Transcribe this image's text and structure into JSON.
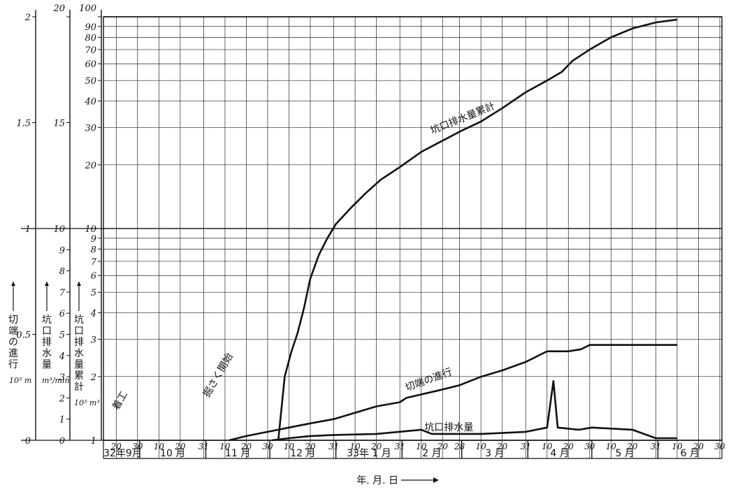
{
  "chart_data": {
    "type": "line",
    "xlabel": "年. 月. 日",
    "axes": {
      "advance": {
        "label": "切端の進行",
        "unit": "10³ m",
        "range": [
          0,
          2
        ],
        "ticks": [
          "0",
          "0.5",
          "1",
          "1.5",
          "2"
        ]
      },
      "discharge": {
        "label": "坑口排水量",
        "unit": "m³/min",
        "range": [
          0,
          20
        ],
        "ticks": [
          "0",
          "1",
          "2",
          "3",
          "4",
          "5",
          "6",
          "7",
          "8",
          "9",
          "10",
          "15",
          "20"
        ]
      },
      "cumulative": {
        "label": "坑口排水量累計",
        "unit": "10³ m³",
        "scale": "log",
        "range": [
          1,
          100
        ],
        "ticks": [
          "1",
          "2",
          "3",
          "4",
          "5",
          "6",
          "7",
          "8",
          "9",
          "10",
          "20",
          "30",
          "40",
          "50",
          "60",
          "70",
          "80",
          "90",
          "100"
        ]
      }
    },
    "x_axis": {
      "months": [
        {
          "label": "32年9月",
          "start": "1957-09-15",
          "end": "1957-09-30"
        },
        {
          "label": "10 月",
          "start": "1957-10-01",
          "end": "1957-10-31"
        },
        {
          "label": "11 月",
          "start": "1957-11-01",
          "end": "1957-11-30"
        },
        {
          "label": "12 月",
          "start": "1957-12-01",
          "end": "1957-12-31"
        },
        {
          "label": "33年 1 月",
          "start": "1958-01-01",
          "end": "1958-01-31"
        },
        {
          "label": "2 月",
          "start": "1958-02-01",
          "end": "1958-02-28"
        },
        {
          "label": "3 月",
          "start": "1958-03-01",
          "end": "1958-03-31"
        },
        {
          "label": "4 月",
          "start": "1958-04-01",
          "end": "1958-04-30"
        },
        {
          "label": "5 月",
          "start": "1958-05-01",
          "end": "1958-05-31"
        },
        {
          "label": "6 月",
          "start": "1958-06-01",
          "end": "1958-06-30"
        }
      ],
      "day_ticks": [
        {
          "date": "1957-09-20",
          "label": "20"
        },
        {
          "date": "1957-09-30",
          "label": "30"
        },
        {
          "date": "1957-10-10",
          "label": "10"
        },
        {
          "date": "1957-10-20",
          "label": "20"
        },
        {
          "date": "1957-10-31",
          "label": "31"
        },
        {
          "date": "1957-11-10",
          "label": "10"
        },
        {
          "date": "1957-11-20",
          "label": "20"
        },
        {
          "date": "1957-11-30",
          "label": "30"
        },
        {
          "date": "1957-12-10",
          "label": "10"
        },
        {
          "date": "1957-12-20",
          "label": "20"
        },
        {
          "date": "1957-12-31",
          "label": "31"
        },
        {
          "date": "1958-01-10",
          "label": "10"
        },
        {
          "date": "1958-01-20",
          "label": "20"
        },
        {
          "date": "1958-01-31",
          "label": "31"
        },
        {
          "date": "1958-02-10",
          "label": "10"
        },
        {
          "date": "1958-02-20",
          "label": "20"
        },
        {
          "date": "1958-02-28",
          "label": "28"
        },
        {
          "date": "1958-03-10",
          "label": "10"
        },
        {
          "date": "1958-03-20",
          "label": "20"
        },
        {
          "date": "1958-03-31",
          "label": "31"
        },
        {
          "date": "1958-04-10",
          "label": "10"
        },
        {
          "date": "1958-04-20",
          "label": "20"
        },
        {
          "date": "1958-04-30",
          "label": "30"
        },
        {
          "date": "1958-05-10",
          "label": "10"
        },
        {
          "date": "1958-05-20",
          "label": "20"
        },
        {
          "date": "1958-05-31",
          "label": "31"
        },
        {
          "date": "1958-06-10",
          "label": "10"
        },
        {
          "date": "1958-06-20",
          "label": "20"
        },
        {
          "date": "1958-06-30",
          "label": "30"
        }
      ]
    },
    "series": [
      {
        "name": "坑口排水量累計",
        "axis": "cumulative",
        "points": [
          [
            "1957-12-05",
            1.0
          ],
          [
            "1957-12-08",
            2.0
          ],
          [
            "1957-12-11",
            2.6
          ],
          [
            "1957-12-14",
            3.2
          ],
          [
            "1957-12-17",
            4.2
          ],
          [
            "1957-12-20",
            5.8
          ],
          [
            "1957-12-24",
            7.5
          ],
          [
            "1957-12-28",
            9.0
          ],
          [
            "1958-01-01",
            10.5
          ],
          [
            "1958-01-08",
            12.5
          ],
          [
            "1958-01-15",
            14.7
          ],
          [
            "1958-01-22",
            17.0
          ],
          [
            "1958-01-31",
            19.5
          ],
          [
            "1958-02-10",
            23.0
          ],
          [
            "1958-02-20",
            26.0
          ],
          [
            "1958-03-01",
            29.0
          ],
          [
            "1958-03-10",
            32.0
          ],
          [
            "1958-03-20",
            37.0
          ],
          [
            "1958-03-31",
            44.0
          ],
          [
            "1958-04-10",
            50.0
          ],
          [
            "1958-04-17",
            55.0
          ],
          [
            "1958-04-22",
            62.0
          ],
          [
            "1958-04-30",
            70.0
          ],
          [
            "1958-05-10",
            80.0
          ],
          [
            "1958-05-20",
            88.0
          ],
          [
            "1958-05-31",
            94.0
          ],
          [
            "1958-06-10",
            97.0
          ]
        ]
      },
      {
        "name": "切端の進行",
        "axis": "advance",
        "points": [
          [
            "1957-11-12",
            0.0
          ],
          [
            "1957-11-20",
            0.02
          ],
          [
            "1957-11-30",
            0.04
          ],
          [
            "1957-12-10",
            0.06
          ],
          [
            "1957-12-20",
            0.08
          ],
          [
            "1957-12-31",
            0.1
          ],
          [
            "1958-01-10",
            0.13
          ],
          [
            "1958-01-20",
            0.16
          ],
          [
            "1958-01-31",
            0.18
          ],
          [
            "1958-02-03",
            0.2
          ],
          [
            "1958-02-20",
            0.24
          ],
          [
            "1958-02-28",
            0.26
          ],
          [
            "1958-03-10",
            0.3
          ],
          [
            "1958-03-20",
            0.33
          ],
          [
            "1958-03-31",
            0.37
          ],
          [
            "1958-04-10",
            0.42
          ],
          [
            "1958-04-20",
            0.42
          ],
          [
            "1958-04-26",
            0.43
          ],
          [
            "1958-04-30",
            0.45
          ],
          [
            "1958-05-15",
            0.45
          ],
          [
            "1958-05-31",
            0.45
          ],
          [
            "1958-06-10",
            0.45
          ]
        ]
      },
      {
        "name": "坑口排水量",
        "axis": "discharge",
        "points": [
          [
            "1957-12-02",
            0.0
          ],
          [
            "1957-12-10",
            0.1
          ],
          [
            "1957-12-20",
            0.2
          ],
          [
            "1957-12-31",
            0.25
          ],
          [
            "1958-01-20",
            0.3
          ],
          [
            "1958-02-10",
            0.5
          ],
          [
            "1958-02-15",
            0.3
          ],
          [
            "1958-03-10",
            0.3
          ],
          [
            "1958-03-31",
            0.4
          ],
          [
            "1958-04-10",
            0.6
          ],
          [
            "1958-04-13",
            2.8
          ],
          [
            "1958-04-15",
            0.6
          ],
          [
            "1958-04-25",
            0.5
          ],
          [
            "1958-05-01",
            0.6
          ],
          [
            "1958-05-20",
            0.5
          ],
          [
            "1958-05-31",
            0.1
          ],
          [
            "1958-06-10",
            0.1
          ]
        ]
      }
    ],
    "annotations": [
      {
        "text": "着工",
        "date": "1957-09-23",
        "value": 0.18,
        "axis": "advance"
      },
      {
        "text": "掘さく開始",
        "date": "1957-11-08",
        "value": 0.3,
        "axis": "advance"
      }
    ],
    "grid": true
  }
}
